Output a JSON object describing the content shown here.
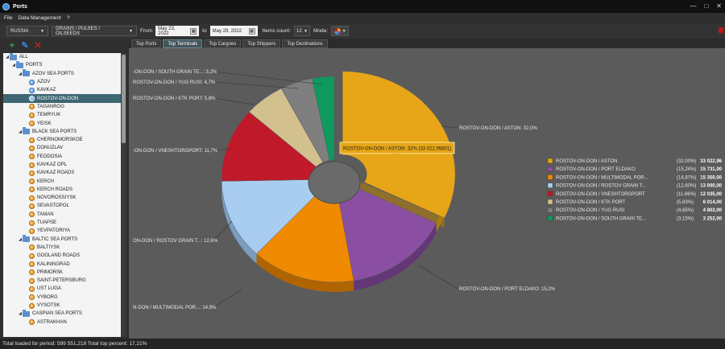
{
  "window": {
    "title": "Ports",
    "controls": [
      "—",
      "□",
      "✕"
    ]
  },
  "menu": [
    "File",
    "Data Management",
    "?"
  ],
  "toolbar": {
    "country": "RUSSIA",
    "cargo_group": "GRAINS / PULSES / OILSEEDS",
    "from_label": "From",
    "from_date": "May 23, 2022",
    "to_label": "to",
    "to_date": "May 29, 2022",
    "items_count_label": "Items count:",
    "items_count": "12",
    "mode_label": "Mode:"
  },
  "tree": [
    {
      "label": "ALL",
      "level": 0,
      "type": "folder",
      "exp": "◢"
    },
    {
      "label": "PORTS",
      "level": 1,
      "type": "folder",
      "exp": "◢"
    },
    {
      "label": "AZOV SEA PORTS",
      "level": 2,
      "type": "folder",
      "exp": "◢"
    },
    {
      "label": "AZOV",
      "level": 3,
      "type": "port",
      "color": "blue"
    },
    {
      "label": "KAVKAZ",
      "level": 3,
      "type": "port",
      "color": "blue"
    },
    {
      "label": "ROSTOV-ON-DON",
      "level": 3,
      "type": "port",
      "color": "blue",
      "selected": true
    },
    {
      "label": "TAGANROG",
      "level": 3,
      "type": "port",
      "color": "orange"
    },
    {
      "label": "TEMRYUK",
      "level": 3,
      "type": "port",
      "color": "orange"
    },
    {
      "label": "YEISK",
      "level": 3,
      "type": "port",
      "color": "orange"
    },
    {
      "label": "BLACK SEA PORTS",
      "level": 2,
      "type": "folder",
      "exp": "◢"
    },
    {
      "label": "CHERNOMORSKOE",
      "level": 3,
      "type": "port",
      "color": "orange"
    },
    {
      "label": "DONUZLAV",
      "level": 3,
      "type": "port",
      "color": "orange"
    },
    {
      "label": "FEODOSIA",
      "level": 3,
      "type": "port",
      "color": "orange"
    },
    {
      "label": "KAVKAZ OPL",
      "level": 3,
      "type": "port",
      "color": "orange"
    },
    {
      "label": "KAVKAZ ROADS",
      "level": 3,
      "type": "port",
      "color": "orange"
    },
    {
      "label": "KERCH",
      "level": 3,
      "type": "port",
      "color": "orange"
    },
    {
      "label": "KERCH ROADS",
      "level": 3,
      "type": "port",
      "color": "orange"
    },
    {
      "label": "NOVOROSSIYSK",
      "level": 3,
      "type": "port",
      "color": "orange"
    },
    {
      "label": "SEVASTOPOL",
      "level": 3,
      "type": "port",
      "color": "orange"
    },
    {
      "label": "TAMAN",
      "level": 3,
      "type": "port",
      "color": "orange"
    },
    {
      "label": "TUAPSE",
      "level": 3,
      "type": "port",
      "color": "orange"
    },
    {
      "label": "YEVPATORIYA",
      "level": 3,
      "type": "port",
      "color": "orange"
    },
    {
      "label": "BALTIC SEA PORTS",
      "level": 2,
      "type": "folder",
      "exp": "◢"
    },
    {
      "label": "BALTIYSK",
      "level": 3,
      "type": "port",
      "color": "orange"
    },
    {
      "label": "GOGLAND ROADS",
      "level": 3,
      "type": "port",
      "color": "orange"
    },
    {
      "label": "KALININGRAD",
      "level": 3,
      "type": "port",
      "color": "orange"
    },
    {
      "label": "PRIMORSK",
      "level": 3,
      "type": "port",
      "color": "orange"
    },
    {
      "label": "SAINT-PETERSBURG",
      "level": 3,
      "type": "port",
      "color": "orange"
    },
    {
      "label": "UST LUGA",
      "level": 3,
      "type": "port",
      "color": "orange"
    },
    {
      "label": "VYBORG",
      "level": 3,
      "type": "port",
      "color": "orange"
    },
    {
      "label": "VYSOTSK",
      "level": 3,
      "type": "port",
      "color": "orange"
    },
    {
      "label": "CASPIAN SEA PORTS",
      "level": 2,
      "type": "folder",
      "exp": "◢"
    },
    {
      "label": "ASTRAKHAN",
      "level": 3,
      "type": "port",
      "color": "orange"
    }
  ],
  "tabs": [
    {
      "label": "Top Ports",
      "active": false
    },
    {
      "label": "Top Terminals",
      "active": true
    },
    {
      "label": "Top Cargoes",
      "active": false
    },
    {
      "label": "Top Shippers",
      "active": false
    },
    {
      "label": "Top Destinations",
      "active": false
    }
  ],
  "chart_data": {
    "type": "pie",
    "tooltip": "ROSTOV-ON-DON / ASTON: 32% (33 022,95801)",
    "slices": [
      {
        "name": "ROSTOV-ON-DON / ASTON",
        "legend_name": "ROSTOV-ON-DON / ASTON",
        "pct": "(32,00%)",
        "value": "33 022,96",
        "callout": "ROSTOV-ON-DON / ASTON: 32,0%",
        "share": 32.0,
        "color": "#e6a617",
        "side": "#b07d0c"
      },
      {
        "name": "ROSTOV-ON-DON / PORT ELDAKO",
        "legend_name": "ROSTOV-ON-DON / PORT ELDAKO",
        "pct": "(15,24%)",
        "value": "15 731,00",
        "callout": "ROSTOV-ON-DON / PORT ELDAKO: 15,2%",
        "share": 15.24,
        "color": "#8a4fa3",
        "side": "#633777"
      },
      {
        "name": "ROSTOV-ON-DON / MULTIMODAL POR...",
        "legend_name": "ROSTOV-ON-DON / MULTIMODAL POR...",
        "pct": "(14,87%)",
        "value": "15 350,00",
        "callout": "N-DON / MULTIMODAL POR...: 14,9%",
        "share": 14.87,
        "color": "#f08a00",
        "side": "#b06400"
      },
      {
        "name": "ROSTOV-ON-DON / ROSTOV GRAIN T...",
        "legend_name": "ROSTOV-ON-DON / ROSTOV GRAIN T...",
        "pct": "(12,60%)",
        "value": "13 000,00",
        "callout": "ON-DON / ROSTOV GRAIN T...: 12,6%",
        "share": 12.6,
        "color": "#a9cdf0",
        "side": "#7a9dc0"
      },
      {
        "name": "ROSTOV-ON-DON / VNESHTORGPORT",
        "legend_name": "ROSTOV-ON-DON / VNESHTORGPORT",
        "pct": "(11,66%)",
        "value": "12 035,00",
        "callout": "-ON-DON / VNESHTORGPORT: 11,7%",
        "share": 11.66,
        "color": "#c01a2a",
        "side": "#8a0f1c"
      },
      {
        "name": "ROSTOV-ON-DON / KTK PORT",
        "legend_name": "ROSTOV-ON-DON / KTK PORT",
        "pct": "(5,83%)",
        "value": "6 014,00",
        "callout": "ROSTOV-ON-DON / KTK PORT: 5,8%",
        "share": 5.83,
        "color": "#d2c08f",
        "side": "#a39369"
      },
      {
        "name": "ROSTOV-ON-DON / YUG RUSI",
        "legend_name": "ROSTOV-ON-DON / YUG RUSI",
        "pct": "(4,65%)",
        "value": "4 802,00",
        "callout": "ROSTOV-ON-DON / YUG RUSI: 4,7%",
        "share": 4.65,
        "color": "#7f7f7f",
        "side": "#5a5a5a"
      },
      {
        "name": "ROSTOV-ON-DON / SOUTH GRAIN TE...",
        "legend_name": "ROSTOV-ON-DON / SOUTH GRAIN TE...",
        "pct": "(3,15%)",
        "value": "3 252,00",
        "callout": "-ON-DON / SOUTH GRAIN TE...: 3,2%",
        "share": 3.15,
        "color": "#0e9a5e",
        "side": "#096b41"
      }
    ]
  },
  "status": "Total loaded for period: 599 551,218 Total top percent: 17,21%"
}
